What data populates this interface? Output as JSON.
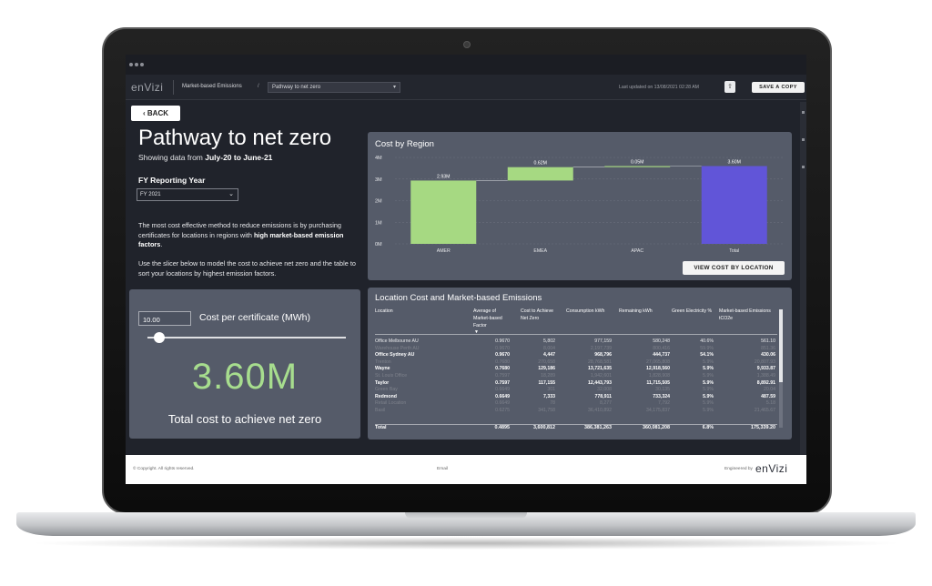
{
  "app": {
    "logo": "enVizi",
    "breadcrumb": "Market-based Emissions",
    "breadcrumb_sep": "/",
    "page_select": "Pathway to net zero",
    "last_updated": "Last updated on 13/08/2021 02:28 AM",
    "save_copy": "SAVE A COPY"
  },
  "left": {
    "back": "BACK",
    "title": "Pathway to net zero",
    "showing_prefix": "Showing data from ",
    "showing_range": "July-20 to June-21",
    "fy_label": "FY Reporting Year",
    "fy_value": "FY 2021",
    "para1_a": "The most cost effective method to reduce emissions is by purchasing certificates for locations in regions with ",
    "para1_b": "high market-based emission factors",
    "para1_c": ".",
    "para2": "Use the slicer below to model the cost to achieve net zero and the table to sort your locations by highest emission factors."
  },
  "cost_card": {
    "input_value": "10.00",
    "input_label": "Cost per certificate (MWh)",
    "slider_fraction": 0.06,
    "total_value": "3.60M",
    "total_label": "Total cost to achieve net zero"
  },
  "region_card": {
    "title": "Cost by Region",
    "view_button": "VIEW COST BY LOCATION"
  },
  "chart_data": {
    "type": "bar",
    "title": "Cost by Region",
    "categories": [
      "AMER",
      "EMEA",
      "APAC",
      "Total"
    ],
    "values": [
      2.93,
      0.62,
      0.05,
      3.6
    ],
    "labels": [
      "2.93M",
      "0.62M",
      "0.05M",
      "3.60M"
    ],
    "yticks": [
      "0M",
      "1M",
      "2M",
      "3M",
      "4M"
    ],
    "ylim": [
      0,
      4
    ],
    "colors": {
      "step": "#a6d982",
      "total": "#6155d8"
    }
  },
  "table_card": {
    "title": "Location Cost and Market-based Emissions",
    "headers": [
      "Location",
      "Average of Market-based Factor",
      "Cost to Achieve Net Zero",
      "Consumption kWh",
      "Remaining kWh",
      "Green Electricity %",
      "Market-based Emissions tCO2e"
    ],
    "rows": [
      {
        "cells": [
          "Office Melbourne AU",
          "0.9670",
          "5,802",
          "977,159",
          "580,248",
          "40.6%",
          "561.10"
        ],
        "style": "normal"
      },
      {
        "cells": [
          "Warehouse Perth AU",
          "0.9670",
          "8,004",
          "2,197,739",
          "800,416",
          "59.9%",
          "851.36"
        ],
        "style": "dim"
      },
      {
        "cells": [
          "Office Sydney AU",
          "0.9670",
          "4,447",
          "968,796",
          "444,737",
          "54.1%",
          "430.06"
        ],
        "style": "bold"
      },
      {
        "cells": [
          "Trenton",
          "0.7680",
          "270,658",
          "28,768,581",
          "27,065,808",
          "5.9%",
          "20,807.93"
        ],
        "style": "dim"
      },
      {
        "cells": [
          "Wayne",
          "0.7680",
          "129,186",
          "13,721,635",
          "12,918,560",
          "5.9%",
          "9,933.87"
        ],
        "style": "bold"
      },
      {
        "cells": [
          "St. Louis Office",
          "0.7597",
          "18,289",
          "1,942,601",
          "1,828,908",
          "5.9%",
          "1,388.49"
        ],
        "style": "dim"
      },
      {
        "cells": [
          "Taylor",
          "0.7597",
          "117,155",
          "12,443,793",
          "11,715,505",
          "5.9%",
          "8,892.91"
        ],
        "style": "bold"
      },
      {
        "cells": [
          "Green Bay",
          "0.6649",
          "301",
          "32,008",
          "30,135",
          "5.9%",
          "20.04"
        ],
        "style": "dim"
      },
      {
        "cells": [
          "Redmond",
          "0.6649",
          "7,333",
          "778,911",
          "733,324",
          "5.9%",
          "487.59"
        ],
        "style": "bold"
      },
      {
        "cells": [
          "Retail Location",
          "0.6649",
          "78",
          "8,277",
          "7,792",
          "5.9%",
          "5.18"
        ],
        "style": "dim"
      },
      {
        "cells": [
          "Basil",
          "0.6275",
          "341,758",
          "36,410,892",
          "34,175,837",
          "5.9%",
          "21,465.67"
        ],
        "style": "dim"
      }
    ],
    "total": [
      "Total",
      "0.4895",
      "3,600,812",
      "386,381,263",
      "360,081,208",
      "6.8%",
      "175,339.20"
    ]
  },
  "footer": {
    "copyright": "© Copyright. All rights reserved.",
    "email": "Email",
    "engineered": "Engineered by",
    "logo": "enVizi"
  }
}
